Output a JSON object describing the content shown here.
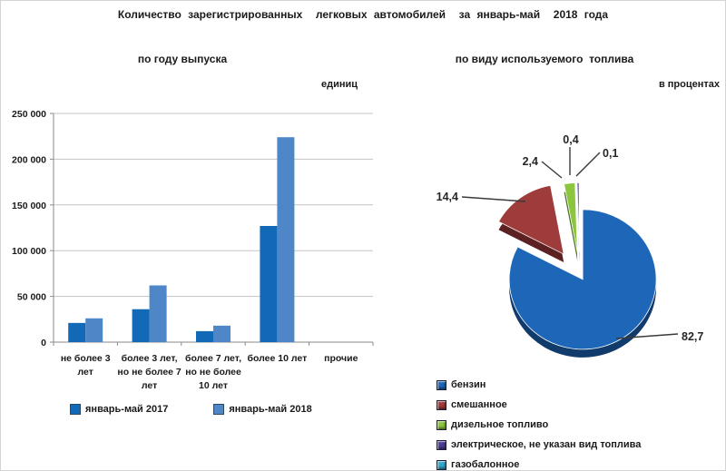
{
  "title": "Количество зарегистрированных  легковых автомобилей  за январь-май  2018 года",
  "bar_panel": {
    "subtitle": "по году выпуска",
    "unit_label": "единиц"
  },
  "pie_panel": {
    "subtitle": "по виду используемого  топлива",
    "unit_label": "в процентах"
  },
  "colors": {
    "bar_2017": "#1169B8",
    "bar_2018": "#4E86C8",
    "gridline": "#C3C3C3",
    "axis": "#8A8A8A",
    "text": "#1A1A1A"
  },
  "chart_data": [
    {
      "type": "bar",
      "title": "по году выпуска",
      "ylabel": "единиц",
      "categories": [
        "не более 3 лет",
        "более 3 лет, но не более 7 лет",
        "более 7 лет, но не более 10 лет",
        "более 10 лет",
        "прочие"
      ],
      "categories_wrapped": [
        [
          "не более 3",
          "лет"
        ],
        [
          "более 3 лет,",
          "но не более 7",
          "лет"
        ],
        [
          "более 7 лет,",
          "но не более",
          "10 лет"
        ],
        [
          "более 10 лет"
        ],
        [
          "прочие"
        ]
      ],
      "series": [
        {
          "name": "январь-май 2017",
          "color": "#1169B8",
          "values": [
            21000,
            36000,
            12000,
            127000,
            0
          ]
        },
        {
          "name": "январь-май 2018",
          "color": "#4E86C8",
          "values": [
            26000,
            62000,
            18000,
            224000,
            0
          ]
        }
      ],
      "ylim": [
        0,
        250000
      ],
      "ytick_step": 50000,
      "ytick_labels": [
        "0",
        "50 000",
        "100 000",
        "150 000",
        "200 000",
        "250 000"
      ],
      "grid": true,
      "legend_position": "bottom"
    },
    {
      "type": "pie",
      "title": "по виду используемого топлива",
      "unit": "в процентах",
      "labels": [
        "бензин",
        "смешанное",
        "дизельное топливо",
        "электрическое, не указан вид топлива",
        "газобалонное"
      ],
      "values": [
        82.7,
        14.4,
        2.4,
        0.4,
        0.1
      ],
      "value_labels": [
        "82,7",
        "14,4",
        "2,4",
        "0,4",
        "0,1"
      ],
      "colors": [
        "#1E66B8",
        "#9E3B3B",
        "#8CC63F",
        "#4D3F93",
        "#35A8CC"
      ],
      "legend_position": "bottom-left",
      "style": "3d-exploded"
    }
  ]
}
